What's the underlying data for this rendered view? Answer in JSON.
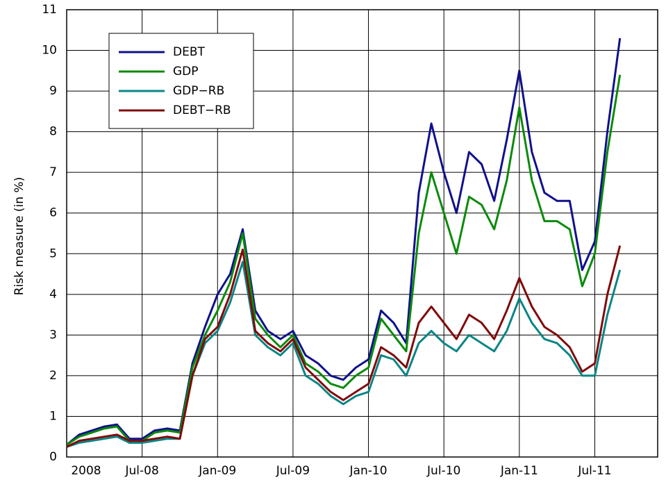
{
  "chart_data": {
    "type": "line",
    "y_label": "Risk measure (in %)",
    "x": [
      "2008-01",
      "2008-02",
      "2008-03",
      "2008-04",
      "2008-05",
      "2008-06",
      "2008-07",
      "2008-08",
      "2008-09",
      "2008-10",
      "2008-11",
      "2008-12",
      "2009-01",
      "2009-02",
      "2009-03",
      "2009-04",
      "2009-05",
      "2009-06",
      "2009-07",
      "2009-08",
      "2009-09",
      "2009-10",
      "2009-11",
      "2009-12",
      "2010-01",
      "2010-02",
      "2010-03",
      "2010-04",
      "2010-05",
      "2010-06",
      "2010-07",
      "2010-08",
      "2010-09",
      "2010-10",
      "2010-11",
      "2010-12",
      "2011-01",
      "2011-02",
      "2011-03",
      "2011-04",
      "2011-05",
      "2011-06",
      "2011-07",
      "2011-08",
      "2011-09"
    ],
    "xlim": [
      "2008-01",
      "2011-12"
    ],
    "xticks": [
      {
        "value": "2008-01",
        "label": "2008"
      },
      {
        "value": "2008-07",
        "label": "Jul-08"
      },
      {
        "value": "2009-01",
        "label": "Jan-09"
      },
      {
        "value": "2009-07",
        "label": "Jul-09"
      },
      {
        "value": "2010-01",
        "label": "Jan-10"
      },
      {
        "value": "2010-07",
        "label": "Jul-10"
      },
      {
        "value": "2011-01",
        "label": "Jan-11"
      },
      {
        "value": "2011-07",
        "label": "Jul-11"
      }
    ],
    "ylim": [
      0,
      11
    ],
    "yticks": [
      0,
      1,
      2,
      3,
      4,
      5,
      6,
      7,
      8,
      9,
      10,
      11
    ],
    "grid": true,
    "legend": "upper left",
    "series": [
      {
        "name": "DEBT",
        "color": "#10108c",
        "values": [
          0.3,
          0.55,
          0.65,
          0.75,
          0.8,
          0.45,
          0.45,
          0.65,
          0.7,
          0.65,
          2.3,
          3.2,
          4.0,
          4.5,
          5.6,
          3.6,
          3.1,
          2.9,
          3.1,
          2.5,
          2.3,
          2.0,
          1.9,
          2.2,
          2.4,
          3.6,
          3.3,
          2.8,
          6.5,
          8.2,
          7.0,
          6.0,
          7.5,
          7.2,
          6.3,
          7.8,
          9.5,
          7.5,
          6.5,
          6.3,
          6.3,
          4.6,
          5.3,
          8.0,
          10.3
        ]
      },
      {
        "name": "GDP",
        "color": "#0a8a0a",
        "values": [
          0.3,
          0.5,
          0.6,
          0.7,
          0.75,
          0.4,
          0.4,
          0.6,
          0.65,
          0.6,
          2.2,
          3.0,
          3.6,
          4.3,
          5.5,
          3.4,
          3.0,
          2.7,
          3.0,
          2.3,
          2.1,
          1.8,
          1.7,
          2.0,
          2.2,
          3.4,
          3.0,
          2.6,
          5.5,
          7.0,
          6.0,
          5.0,
          6.4,
          6.2,
          5.6,
          6.8,
          8.6,
          6.8,
          5.8,
          5.8,
          5.6,
          4.2,
          5.0,
          7.5,
          9.4
        ]
      },
      {
        "name": "GDP−RB",
        "color": "#0a8585",
        "values": [
          0.25,
          0.35,
          0.4,
          0.45,
          0.5,
          0.35,
          0.35,
          0.4,
          0.45,
          0.45,
          2.0,
          2.8,
          3.1,
          3.8,
          4.8,
          3.0,
          2.7,
          2.5,
          2.8,
          2.0,
          1.8,
          1.5,
          1.3,
          1.5,
          1.6,
          2.5,
          2.4,
          2.0,
          2.8,
          3.1,
          2.8,
          2.6,
          3.0,
          2.8,
          2.6,
          3.1,
          3.9,
          3.3,
          2.9,
          2.8,
          2.5,
          2.0,
          2.0,
          3.5,
          4.6
        ]
      },
      {
        "name": "DEBT−RB",
        "color": "#800a0a",
        "values": [
          0.25,
          0.4,
          0.45,
          0.5,
          0.55,
          0.4,
          0.4,
          0.45,
          0.5,
          0.45,
          2.0,
          2.9,
          3.2,
          4.0,
          5.1,
          3.1,
          2.8,
          2.6,
          2.9,
          2.2,
          1.9,
          1.6,
          1.4,
          1.6,
          1.8,
          2.7,
          2.5,
          2.2,
          3.3,
          3.7,
          3.3,
          2.9,
          3.5,
          3.3,
          2.9,
          3.6,
          4.4,
          3.7,
          3.2,
          3.0,
          2.7,
          2.1,
          2.3,
          4.0,
          5.2
        ]
      }
    ]
  }
}
